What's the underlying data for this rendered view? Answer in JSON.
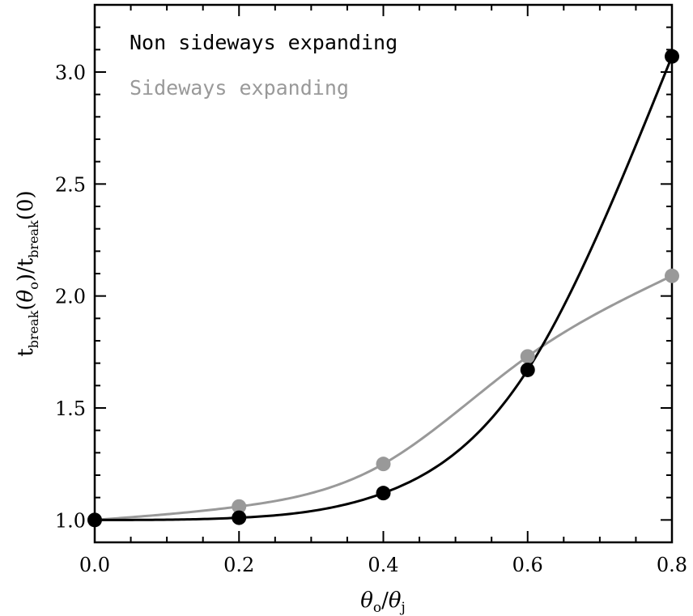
{
  "chart_data": {
    "type": "line",
    "xlabel": "θo/θj",
    "ylabel": "tbreak(θo)/tbreak(0)",
    "xlim": [
      0.0,
      0.8
    ],
    "ylim": [
      0.9,
      3.3
    ],
    "x_ticks": [
      "0.0",
      "0.2",
      "0.4",
      "0.6",
      "0.8"
    ],
    "y_ticks": [
      "1.0",
      "1.5",
      "2.0",
      "2.5",
      "3.0"
    ],
    "grid": false,
    "legend_position": "top-left",
    "x": [
      0.0,
      0.2,
      0.4,
      0.6,
      0.8
    ],
    "series": [
      {
        "name": "Non sideways expanding",
        "color": "#000000",
        "values": [
          1.0,
          1.01,
          1.12,
          1.67,
          3.07
        ]
      },
      {
        "name": "Sideways expanding",
        "color": "#999999",
        "values": [
          1.0,
          1.06,
          1.25,
          1.73,
          2.09
        ]
      }
    ]
  }
}
